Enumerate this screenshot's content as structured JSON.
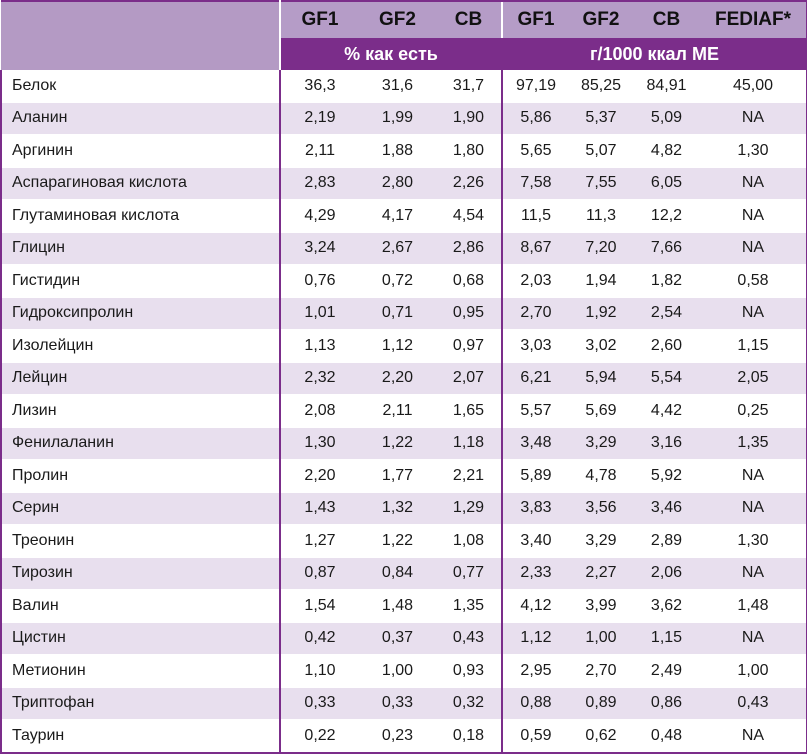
{
  "headers": {
    "group_a": [
      "GF1",
      "GF2",
      "CB"
    ],
    "group_b": [
      "GF1",
      "GF2",
      "CB",
      "FEDIAF*"
    ],
    "unit_a": "% как есть",
    "unit_b": "г/1000 ккал МЕ"
  },
  "rows": [
    {
      "name": "Белок",
      "v": [
        "36,3",
        "31,6",
        "31,7",
        "97,19",
        "85,25",
        "84,91",
        "45,00"
      ]
    },
    {
      "name": "Аланин",
      "v": [
        "2,19",
        "1,99",
        "1,90",
        "5,86",
        "5,37",
        "5,09",
        "NA"
      ]
    },
    {
      "name": "Аргинин",
      "v": [
        "2,11",
        "1,88",
        "1,80",
        "5,65",
        "5,07",
        "4,82",
        "1,30"
      ]
    },
    {
      "name": "Аспарагиновая кислота",
      "v": [
        "2,83",
        "2,80",
        "2,26",
        "7,58",
        "7,55",
        "6,05",
        "NA"
      ]
    },
    {
      "name": "Глутаминовая кислота",
      "v": [
        "4,29",
        "4,17",
        "4,54",
        "11,5",
        "11,3",
        "12,2",
        "NA"
      ]
    },
    {
      "name": "Глицин",
      "v": [
        "3,24",
        "2,67",
        "2,86",
        "8,67",
        "7,20",
        "7,66",
        "NA"
      ]
    },
    {
      "name": "Гистидин",
      "v": [
        "0,76",
        "0,72",
        "0,68",
        "2,03",
        "1,94",
        "1,82",
        "0,58"
      ]
    },
    {
      "name": "Гидроксипролин",
      "v": [
        "1,01",
        "0,71",
        "0,95",
        "2,70",
        "1,92",
        "2,54",
        "NA"
      ]
    },
    {
      "name": "Изолейцин",
      "v": [
        "1,13",
        "1,12",
        "0,97",
        "3,03",
        "3,02",
        "2,60",
        "1,15"
      ]
    },
    {
      "name": "Лейцин",
      "v": [
        "2,32",
        "2,20",
        "2,07",
        "6,21",
        "5,94",
        "5,54",
        "2,05"
      ]
    },
    {
      "name": "Лизин",
      "v": [
        "2,08",
        "2,11",
        "1,65",
        "5,57",
        "5,69",
        "4,42",
        "0,25"
      ]
    },
    {
      "name": "Фенилаланин",
      "v": [
        "1,30",
        "1,22",
        "1,18",
        "3,48",
        "3,29",
        "3,16",
        "1,35"
      ]
    },
    {
      "name": "Пролин",
      "v": [
        "2,20",
        "1,77",
        "2,21",
        "5,89",
        "4,78",
        "5,92",
        "NA"
      ]
    },
    {
      "name": "Серин",
      "v": [
        "1,43",
        "1,32",
        "1,29",
        "3,83",
        "3,56",
        "3,46",
        "NA"
      ]
    },
    {
      "name": "Треонин",
      "v": [
        "1,27",
        "1,22",
        "1,08",
        "3,40",
        "3,29",
        "2,89",
        "1,30"
      ]
    },
    {
      "name": "Тирозин",
      "v": [
        "0,87",
        "0,84",
        "0,77",
        "2,33",
        "2,27",
        "2,06",
        "NA"
      ]
    },
    {
      "name": "Валин",
      "v": [
        "1,54",
        "1,48",
        "1,35",
        "4,12",
        "3,99",
        "3,62",
        "1,48"
      ]
    },
    {
      "name": "Цистин",
      "v": [
        "0,42",
        "0,37",
        "0,43",
        "1,12",
        "1,00",
        "1,15",
        "NA"
      ]
    },
    {
      "name": "Метионин",
      "v": [
        "1,10",
        "1,00",
        "0,93",
        "2,95",
        "2,70",
        "2,49",
        "1,00"
      ]
    },
    {
      "name": "Триптофан",
      "v": [
        "0,33",
        "0,33",
        "0,32",
        "0,88",
        "0,89",
        "0,86",
        "0,43"
      ]
    },
    {
      "name": "Таурин",
      "v": [
        "0,22",
        "0,23",
        "0,18",
        "0,59",
        "0,62",
        "0,48",
        "NA"
      ]
    }
  ]
}
